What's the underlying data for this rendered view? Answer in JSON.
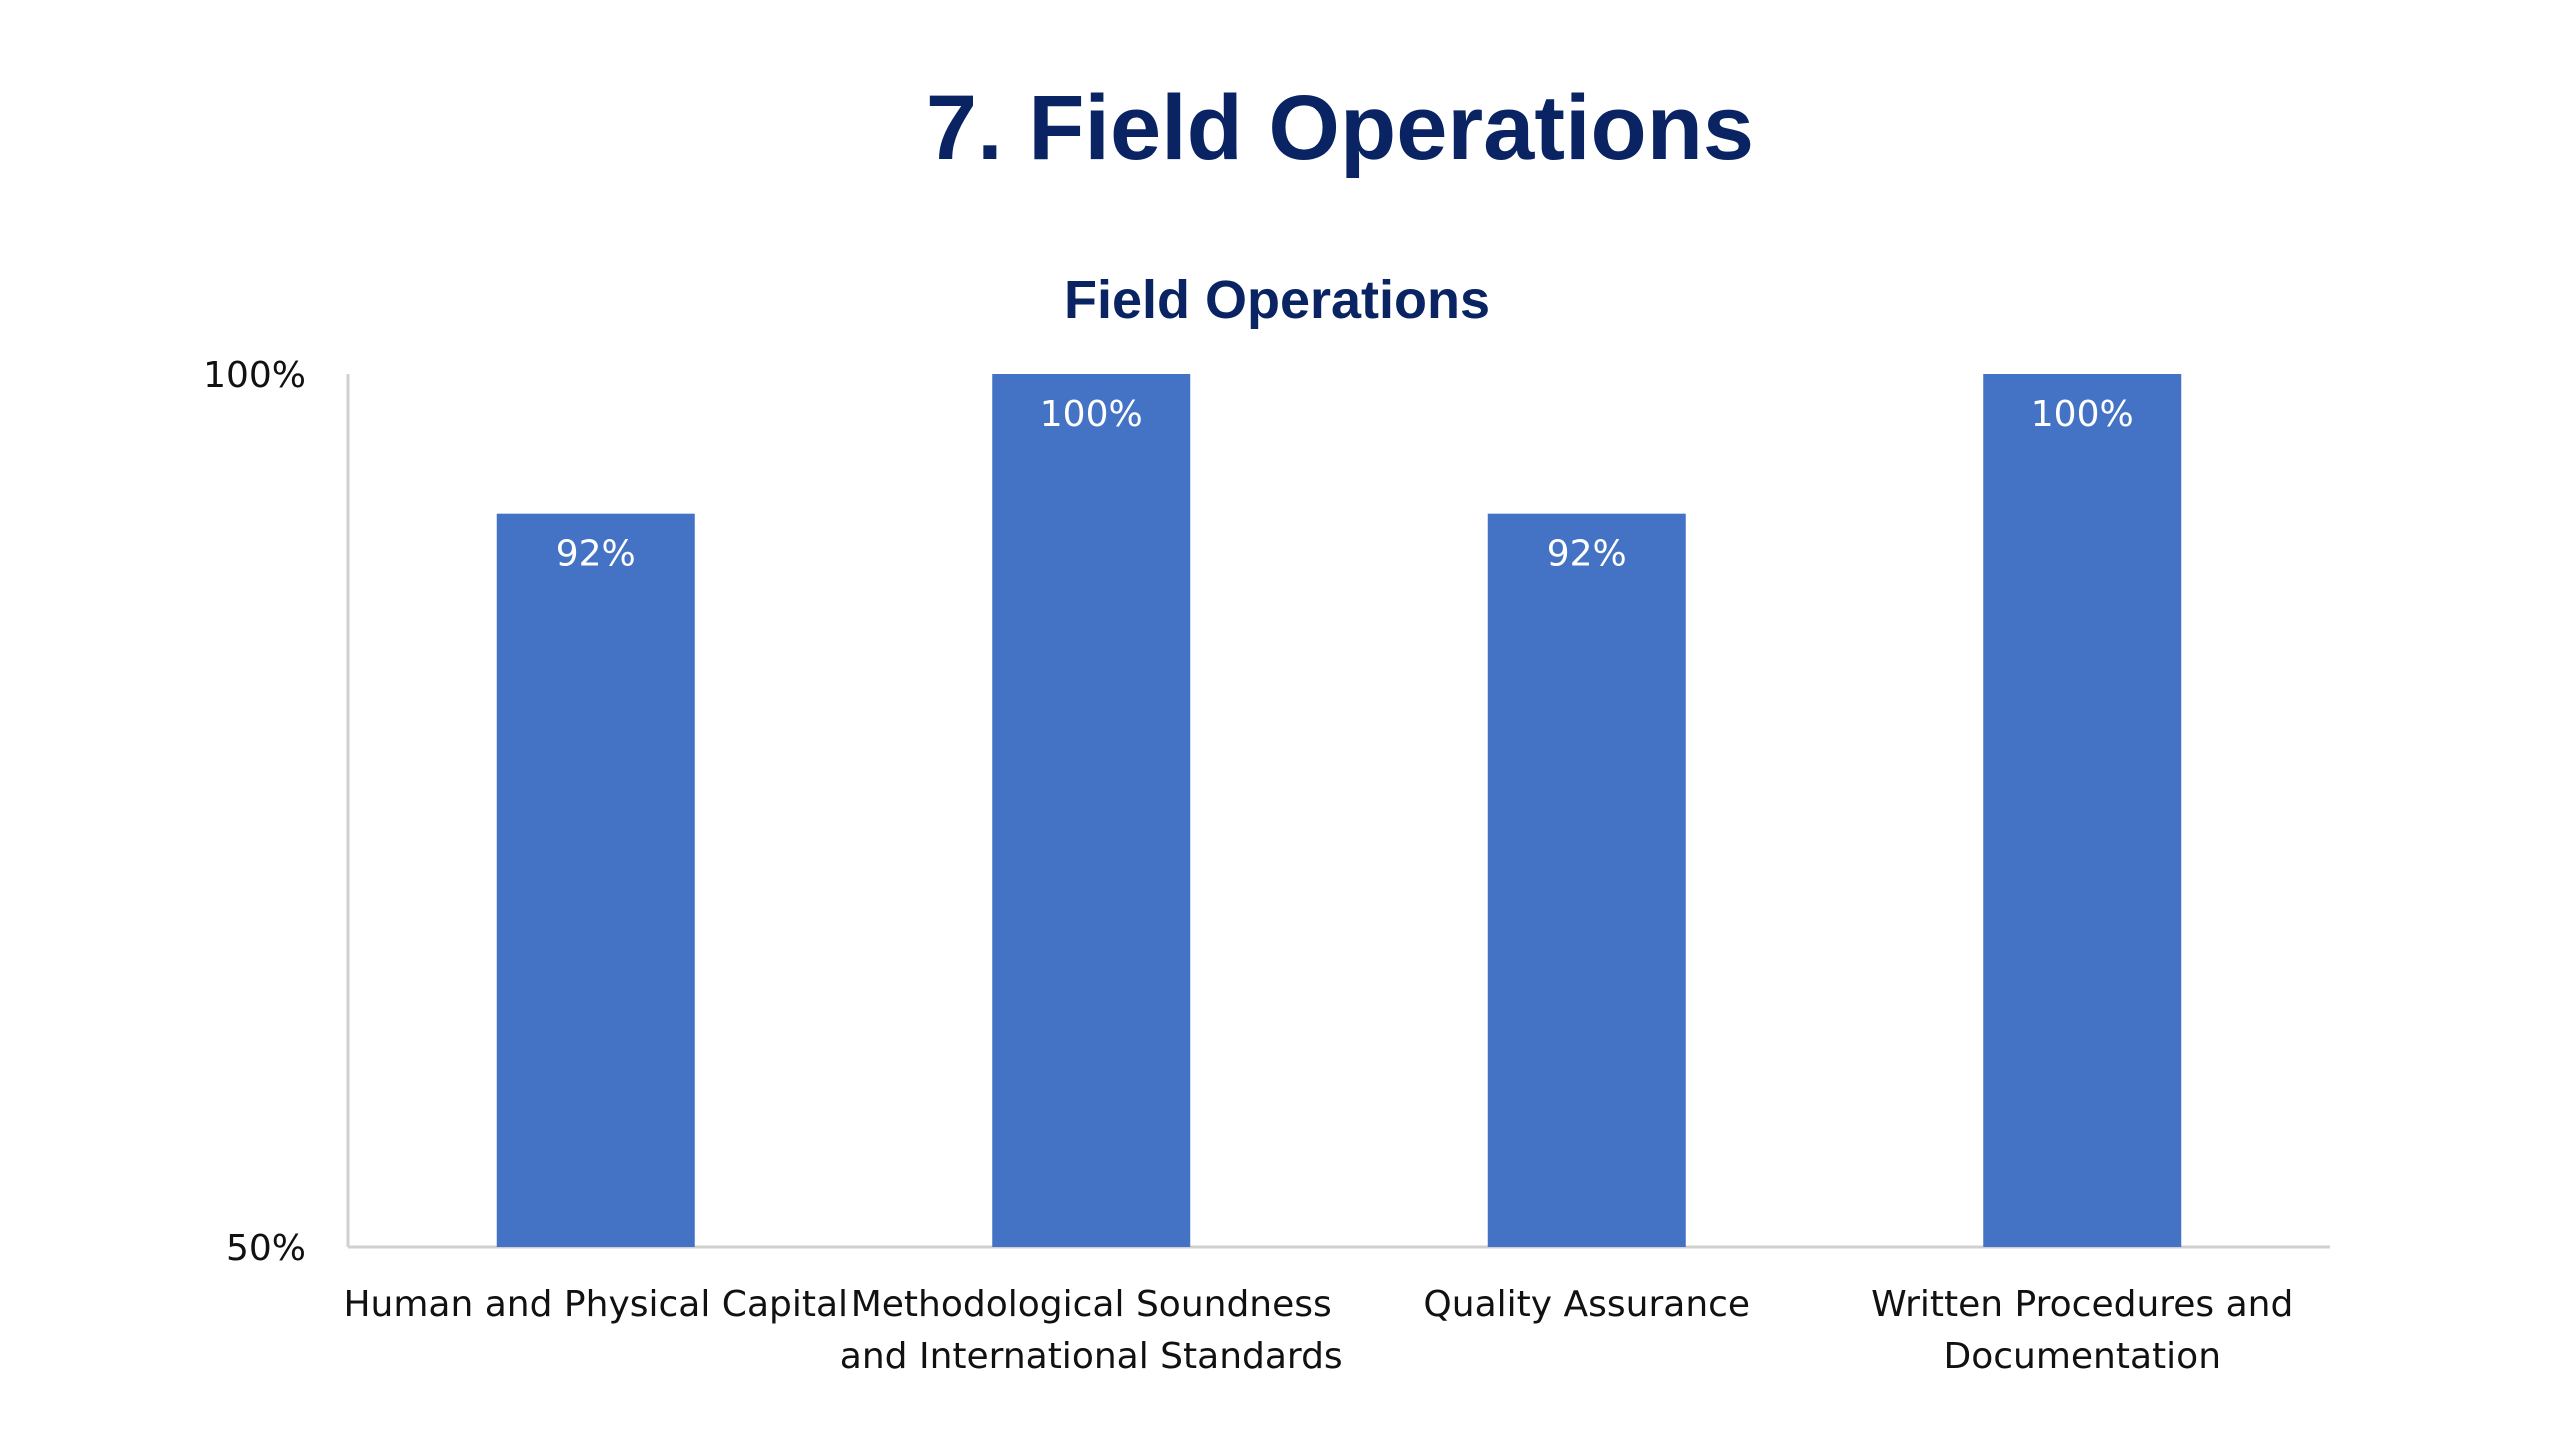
{
  "slide": {
    "title": "7. Field Operations"
  },
  "chart_data": {
    "type": "bar",
    "title": "Field Operations",
    "xlabel": "",
    "ylabel": "",
    "categories": [
      [
        "Human and Physical Capital"
      ],
      [
        "Methodological Soundness",
        "and International Standards"
      ],
      [
        "Quality Assurance"
      ],
      [
        "Written Procedures and",
        "Documentation"
      ]
    ],
    "values": [
      92,
      100,
      92,
      100
    ],
    "data_labels": [
      "92%",
      "100%",
      "92%",
      "100%"
    ],
    "y_ticks": [
      "50%",
      "100%"
    ],
    "ylim": [
      50,
      100
    ],
    "grid": false,
    "legend": "none",
    "bar_color": "#4472c4",
    "axis_color": "#d0d0d0",
    "title_color": "#0a2463"
  }
}
